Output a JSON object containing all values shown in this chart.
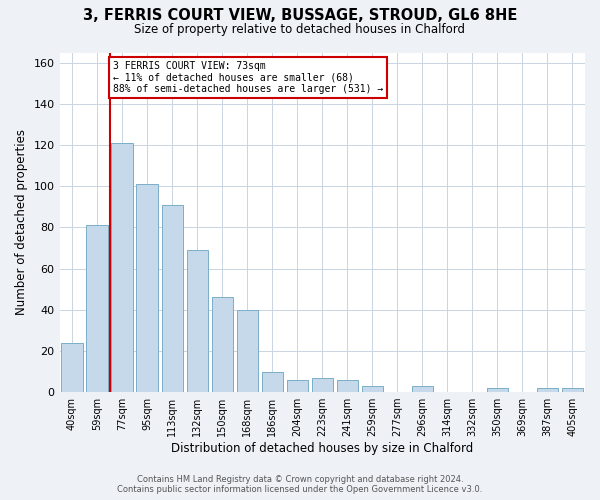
{
  "title_line1": "3, FERRIS COURT VIEW, BUSSAGE, STROUD, GL6 8HE",
  "title_line2": "Size of property relative to detached houses in Chalford",
  "xlabel": "Distribution of detached houses by size in Chalford",
  "ylabel": "Number of detached properties",
  "bar_labels": [
    "40sqm",
    "59sqm",
    "77sqm",
    "95sqm",
    "113sqm",
    "132sqm",
    "150sqm",
    "168sqm",
    "186sqm",
    "204sqm",
    "223sqm",
    "241sqm",
    "259sqm",
    "277sqm",
    "296sqm",
    "314sqm",
    "332sqm",
    "350sqm",
    "369sqm",
    "387sqm",
    "405sqm"
  ],
  "bar_heights": [
    24,
    81,
    121,
    101,
    91,
    69,
    46,
    40,
    10,
    6,
    7,
    6,
    3,
    0,
    3,
    0,
    0,
    2,
    0,
    2,
    2
  ],
  "bar_color": "#c5d9ea",
  "bar_edge_color": "#7aaec8",
  "property_line_x": 1.5,
  "property_line_label": "3 FERRIS COURT VIEW: 73sqm",
  "annotation_line1": "← 11% of detached houses are smaller (68)",
  "annotation_line2": "88% of semi-detached houses are larger (531) →",
  "annotation_box_color": "#ffffff",
  "annotation_box_edge_color": "#cc0000",
  "property_line_color": "#cc0000",
  "ylim": [
    0,
    165
  ],
  "yticks": [
    0,
    20,
    40,
    60,
    80,
    100,
    120,
    140,
    160
  ],
  "footer_line1": "Contains HM Land Registry data © Crown copyright and database right 2024.",
  "footer_line2": "Contains public sector information licensed under the Open Government Licence v3.0.",
  "background_color": "#eef2f7",
  "plot_bg_color": "#ffffff",
  "grid_color": "#c8d4e0"
}
